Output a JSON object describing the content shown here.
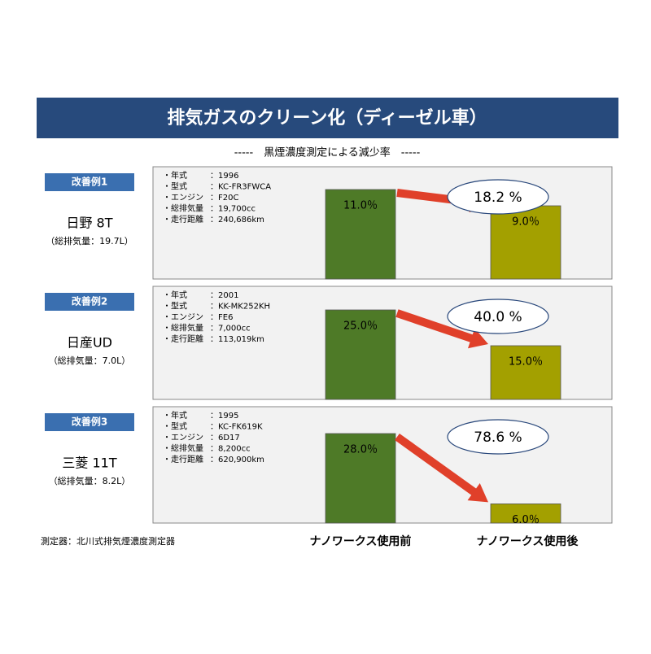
{
  "title": "排気ガスのクリーン化（ディーゼル車）",
  "subtitle": "-----　黒煙濃度測定による減少率　-----",
  "categories": [
    "ナノワークス使用前",
    "ナノワークス使用後"
  ],
  "footnote": "測定器：北川式排気煙濃度測定器",
  "chart_data": [
    {
      "type": "bar",
      "label": "改善例1",
      "vehicle": "日野 8T",
      "displacement": "（総排気量：19.7L）",
      "specs": [
        [
          "・年式",
          "：1996"
        ],
        [
          "・型式",
          "：KC-FR3FWCA"
        ],
        [
          "・エンジン",
          "：F20C"
        ],
        [
          "・総排気量",
          "：19,700cc"
        ],
        [
          "・走行距離",
          "：240,686km"
        ]
      ],
      "values": [
        11.0,
        9.0
      ],
      "value_labels": [
        "11.0％",
        "9.0％"
      ],
      "colors": [
        "#4e7a27",
        "#a3a000"
      ],
      "reduction": "18.2 %"
    },
    {
      "type": "bar",
      "label": "改善例2",
      "vehicle": "日産UD",
      "displacement": "（総排気量：7.0L）",
      "specs": [
        [
          "・年式",
          "：2001"
        ],
        [
          "・型式",
          "：KK-MK252KH"
        ],
        [
          "・エンジン",
          "：FE6"
        ],
        [
          "・総排気量",
          "：7,000cc"
        ],
        [
          "・走行距離",
          "：113,019km"
        ]
      ],
      "values": [
        25.0,
        15.0
      ],
      "value_labels": [
        "25.0％",
        "15.0％"
      ],
      "colors": [
        "#4e7a27",
        "#a3a000"
      ],
      "reduction": "40.0 %"
    },
    {
      "type": "bar",
      "label": "改善例3",
      "vehicle": "三菱 11T",
      "displacement": "（総排気量：8.2L）",
      "specs": [
        [
          "・年式",
          "：1995"
        ],
        [
          "・型式",
          "：KC-FK619K"
        ],
        [
          "・エンジン",
          "：6D17"
        ],
        [
          "・総排気量",
          "：8,200cc"
        ],
        [
          "・走行距離",
          "：620,900km"
        ]
      ],
      "values": [
        28.0,
        6.0
      ],
      "value_labels": [
        "28.0％",
        "6.0％"
      ],
      "colors": [
        "#4e7a27",
        "#a3a000"
      ],
      "reduction": "78.6 %"
    }
  ]
}
